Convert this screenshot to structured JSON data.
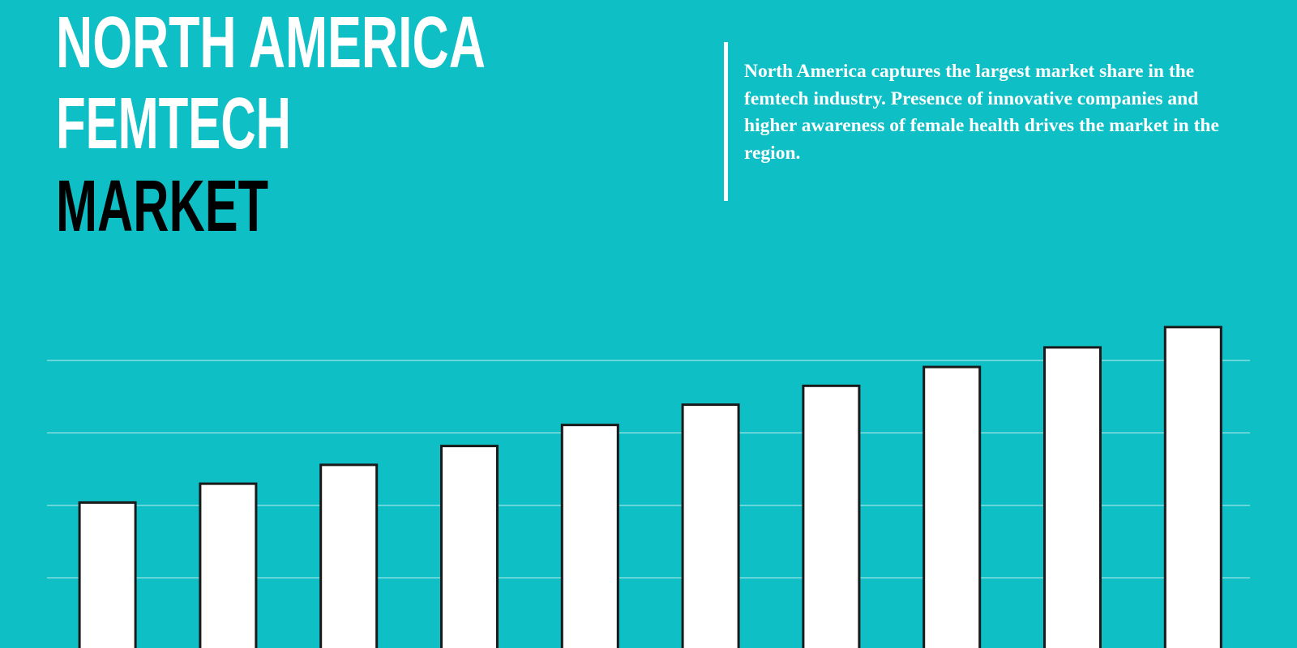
{
  "chart_data": {
    "type": "bar",
    "title_lines": [
      "NORTH AMERICA",
      "FEMTECH",
      "MARKET"
    ],
    "description": "North America captures the largest market share in the femtech industry. Presence of innovative companies and higher awareness of female health drives the market in the region.",
    "categories": [
      null,
      null,
      null,
      null,
      null,
      null,
      null,
      null,
      null,
      null
    ],
    "values": [
      2.04,
      2.3,
      2.56,
      2.82,
      3.11,
      3.39,
      3.65,
      3.91,
      4.18,
      4.46
    ],
    "color": "#ffffff",
    "ylim": [
      0,
      5
    ],
    "yticks": [
      1,
      2,
      3,
      4
    ],
    "grid": true
  }
}
